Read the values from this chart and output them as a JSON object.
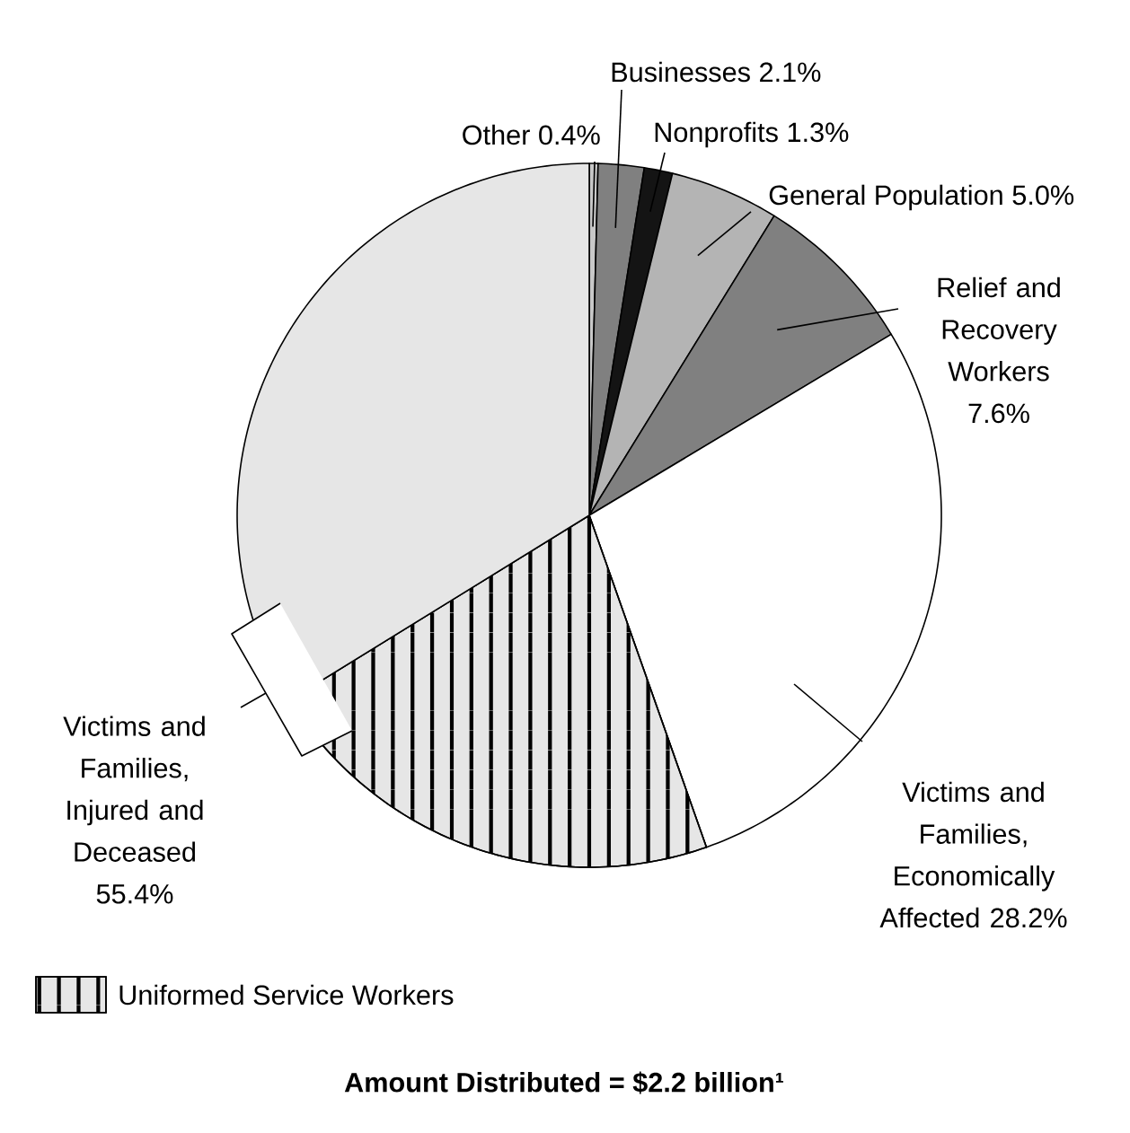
{
  "chart_data": {
    "type": "pie",
    "title": "Amount Distributed = $2.2 billion¹",
    "categories": [
      "Other",
      "Businesses",
      "Nonprofits",
      "General Population",
      "Relief and Recovery Workers",
      "Victims and Families, Economically Affected",
      "Uniformed Service Workers",
      null
    ],
    "values": [
      0.4,
      2.1,
      1.3,
      5.0,
      7.6,
      28.2,
      21.6,
      33.8
    ],
    "value_labels": [
      "0.4%",
      "2.1%",
      "1.3%",
      "5.0%",
      "7.6%",
      "28.2%",
      null,
      null
    ],
    "colors": [
      "#c8c8c8",
      "#808080",
      "#141414",
      "#b4b4b4",
      "#808080",
      "#ffffff",
      "#e6e6e6",
      "#e6e6e6"
    ],
    "legend": "bottom left",
    "annotations": [
      "Victims and Families, Injured and Deceased 55.4%"
    ]
  }
}
